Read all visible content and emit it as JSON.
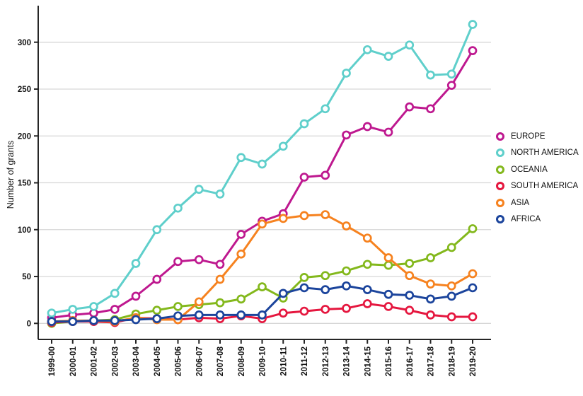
{
  "chart_data": {
    "type": "line",
    "ylabel": "Number of grants",
    "ylim": [
      0,
      320
    ],
    "yticks": [
      0,
      50,
      100,
      150,
      200,
      250,
      300
    ],
    "grid": "horizontal-only",
    "legend_position": "right",
    "marker_style": "open-circle",
    "categories": [
      "1999-00",
      "2000-01",
      "2001-02",
      "2002-03",
      "2003-04",
      "2004-05",
      "2005-06",
      "2006-07",
      "2007-08",
      "2008-09",
      "2009-10",
      "2010-11",
      "2011-12",
      "2012-13",
      "2013-14",
      "2014-15",
      "2015-16",
      "2016-17",
      "2017-18",
      "2018-19",
      "2019-20"
    ],
    "series": [
      {
        "name": "EUROPE",
        "color": "#BE188F",
        "values": [
          6,
          9,
          11,
          15,
          29,
          47,
          66,
          68,
          63,
          95,
          109,
          117,
          156,
          158,
          201,
          210,
          204,
          231,
          229,
          254,
          291
        ]
      },
      {
        "name": "NORTH AMERICA",
        "color": "#5FCFCB",
        "values": [
          11,
          15,
          18,
          32,
          64,
          100,
          123,
          143,
          138,
          177,
          170,
          189,
          213,
          229,
          267,
          292,
          285,
          297,
          265,
          266,
          319
        ]
      },
      {
        "name": "OCEANIA",
        "color": "#83B81C",
        "values": [
          0,
          2,
          3,
          4,
          10,
          14,
          18,
          20,
          22,
          26,
          39,
          27,
          49,
          51,
          56,
          63,
          62,
          64,
          70,
          81,
          101
        ]
      },
      {
        "name": "SOUTH AMERICA",
        "color": "#E5173F",
        "values": [
          1,
          2,
          2,
          1,
          6,
          5,
          4,
          6,
          5,
          8,
          5,
          11,
          13,
          15,
          16,
          21,
          18,
          14,
          9,
          7,
          7
        ]
      },
      {
        "name": "ASIA",
        "color": "#F6821F",
        "values": [
          2,
          3,
          3,
          2,
          6,
          4,
          4,
          23,
          47,
          74,
          106,
          112,
          115,
          116,
          104,
          91,
          70,
          51,
          42,
          40,
          53
        ]
      },
      {
        "name": "AFRICA",
        "color": "#1B449C",
        "values": [
          2,
          2,
          3,
          3,
          4,
          5,
          8,
          9,
          9,
          9,
          9,
          32,
          38,
          36,
          40,
          36,
          31,
          30,
          26,
          29,
          38
        ]
      }
    ]
  },
  "style": {
    "axis_color": "#262626",
    "gridline_color": "#d6d6d6",
    "background": "#ffffff"
  }
}
